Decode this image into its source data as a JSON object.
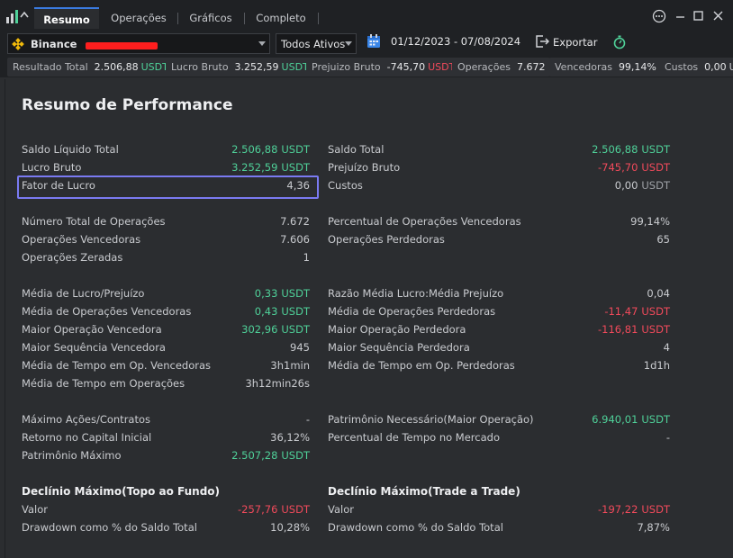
{
  "tabs": [
    "Resumo",
    "Operações",
    "Gráficos",
    "Completo"
  ],
  "toolbar": {
    "exchange": "Binance",
    "assets": "Todos Ativos",
    "date_range": "01/12/2023 - 07/08/2024",
    "export_label": "Exportar"
  },
  "summary": [
    {
      "label": "Resultado Total",
      "value": "2.506,88",
      "currency": "USDT",
      "tone": "pos"
    },
    {
      "label": "Lucro Bruto",
      "value": "3.252,59",
      "currency": "USDT",
      "tone": "pos"
    },
    {
      "label": "Prejuizo Bruto",
      "value": "-745,70",
      "currency": "USDT",
      "tone": "neg"
    },
    {
      "label": "Operações",
      "value": "7.672",
      "currency": "",
      "tone": "none"
    },
    {
      "label": "Vencedoras",
      "value": "99,14%",
      "currency": "",
      "tone": "none"
    },
    {
      "label": "Custos",
      "value": "0,00",
      "currency": "U",
      "tone": "none"
    }
  ],
  "title": "Resumo de Performance",
  "left": [
    {
      "label": "Saldo Líquido Total",
      "value": "2.506,88",
      "currency": "USDT",
      "tone": "pos"
    },
    {
      "label": "Lucro Bruto",
      "value": "3.252,59",
      "currency": "USDT",
      "tone": "pos"
    },
    {
      "label": "Fator de Lucro",
      "value": "4,36",
      "currency": "",
      "tone": "none"
    },
    {
      "label": "Número Total de Operações",
      "value": "7.672",
      "currency": "",
      "tone": "none"
    },
    {
      "label": "Operações Vencedoras",
      "value": "7.606",
      "currency": "",
      "tone": "none"
    },
    {
      "label": "Operações Zeradas",
      "value": "1",
      "currency": "",
      "tone": "none"
    },
    {
      "label": "Média de Lucro/Prejuízo",
      "value": "0,33",
      "currency": "USDT",
      "tone": "pos"
    },
    {
      "label": "Média de Operações Vencedoras",
      "value": "0,43",
      "currency": "USDT",
      "tone": "pos"
    },
    {
      "label": "Maior Operação Vencedora",
      "value": "302,96",
      "currency": "USDT",
      "tone": "pos"
    },
    {
      "label": "Maior Sequência Vencedora",
      "value": "945",
      "currency": "",
      "tone": "none"
    },
    {
      "label": "Média de Tempo em Op. Vencedoras",
      "value": "3h1min",
      "currency": "",
      "tone": "none"
    },
    {
      "label": "Média de Tempo em Operações",
      "value": "3h12min26s",
      "currency": "",
      "tone": "none"
    },
    {
      "label": "Máximo Ações/Contratos",
      "value": "-",
      "currency": "",
      "tone": "none"
    },
    {
      "label": "Retorno no Capital Inicial",
      "value": "36,12%",
      "currency": "",
      "tone": "none"
    },
    {
      "label": "Patrimônio Máximo",
      "value": "2.507,28",
      "currency": "USDT",
      "tone": "pos"
    }
  ],
  "right": [
    {
      "label": "Saldo Total",
      "value": "2.506,88",
      "currency": "USDT",
      "tone": "pos"
    },
    {
      "label": "Prejuízo Bruto",
      "value": "-745,70",
      "currency": "USDT",
      "tone": "neg"
    },
    {
      "label": "Custos",
      "value": "0,00",
      "currency": "USDT",
      "tone": "neutral"
    },
    {
      "label": "Percentual de Operações Vencedoras",
      "value": "99,14%",
      "currency": "",
      "tone": "none"
    },
    {
      "label": "Operações Perdedoras",
      "value": "65",
      "currency": "",
      "tone": "none"
    },
    {
      "label": "Razão Média Lucro:Média Prejuízo",
      "value": "0,04",
      "currency": "",
      "tone": "none"
    },
    {
      "label": "Média de Operações Perdedoras",
      "value": "-11,47",
      "currency": "USDT",
      "tone": "neg"
    },
    {
      "label": "Maior Operação Perdedora",
      "value": "-116,81",
      "currency": "USDT",
      "tone": "neg"
    },
    {
      "label": "Maior Sequência Perdedora",
      "value": "4",
      "currency": "",
      "tone": "none"
    },
    {
      "label": "Média de Tempo em Op. Perdedoras",
      "value": "1d1h",
      "currency": "",
      "tone": "none"
    },
    {
      "label": "Patrimônio Necessário(Maior Operação)",
      "value": "6.940,01",
      "currency": "USDT",
      "tone": "pos"
    },
    {
      "label": "Percentual de Tempo no Mercado",
      "value": "-",
      "currency": "",
      "tone": "none"
    }
  ],
  "drawdown_left": {
    "title": "Declínio Máximo(Topo ao Fundo)",
    "rows": [
      {
        "label": "Valor",
        "value": "-257,76",
        "currency": "USDT",
        "tone": "neg"
      },
      {
        "label": "Drawdown como % do Saldo Total",
        "value": "10,28%",
        "currency": "",
        "tone": "none"
      }
    ]
  },
  "drawdown_right": {
    "title": "Declínio Máximo(Trade a Trade)",
    "rows": [
      {
        "label": "Valor",
        "value": "-197,22",
        "currency": "USDT",
        "tone": "neg"
      },
      {
        "label": "Drawdown como % do Saldo Total",
        "value": "7,87%",
        "currency": "",
        "tone": "none"
      }
    ]
  },
  "colors": {
    "positive": "#4fd199",
    "negative": "#f24a5b",
    "highlight": "#7a7af2",
    "accent": "#3a7be0"
  }
}
